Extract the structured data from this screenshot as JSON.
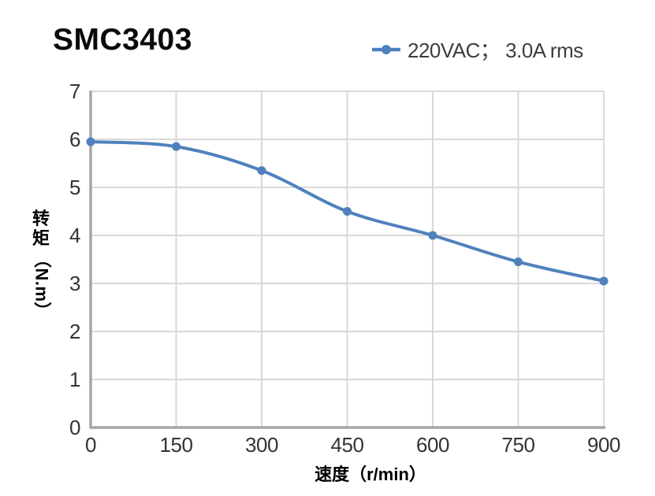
{
  "title": "SMC3403",
  "legend": {
    "label": "220VAC； 3.0A rms",
    "color": "#4f81bd"
  },
  "chart_data": {
    "type": "line",
    "title": "SMC3403",
    "x": [
      0,
      150,
      300,
      450,
      600,
      750,
      900
    ],
    "series": [
      {
        "name": "220VAC； 3.0A rms",
        "values": [
          5.95,
          5.85,
          5.35,
          4.5,
          4.0,
          3.45,
          3.05
        ]
      }
    ],
    "xlabel": "速度（r/min）",
    "ylabel": "转矩（N.m）",
    "ylabel_parts": {
      "cjk": [
        "转",
        "矩"
      ],
      "unit": "（N.m）"
    },
    "xlim": [
      0,
      900
    ],
    "ylim": [
      0,
      7
    ],
    "x_ticks": [
      0,
      150,
      300,
      450,
      600,
      750,
      900
    ],
    "y_ticks": [
      0,
      1,
      2,
      3,
      4,
      5,
      6,
      7
    ],
    "grid": true,
    "smooth": true,
    "marker": "circle",
    "legend_position": "top-right",
    "colors": {
      "line": "#4f81bd",
      "grid": "#d9d9d9",
      "axis": "#a6a6a6",
      "tick_text": "#333333",
      "title_text": "#0a0a0a"
    }
  }
}
